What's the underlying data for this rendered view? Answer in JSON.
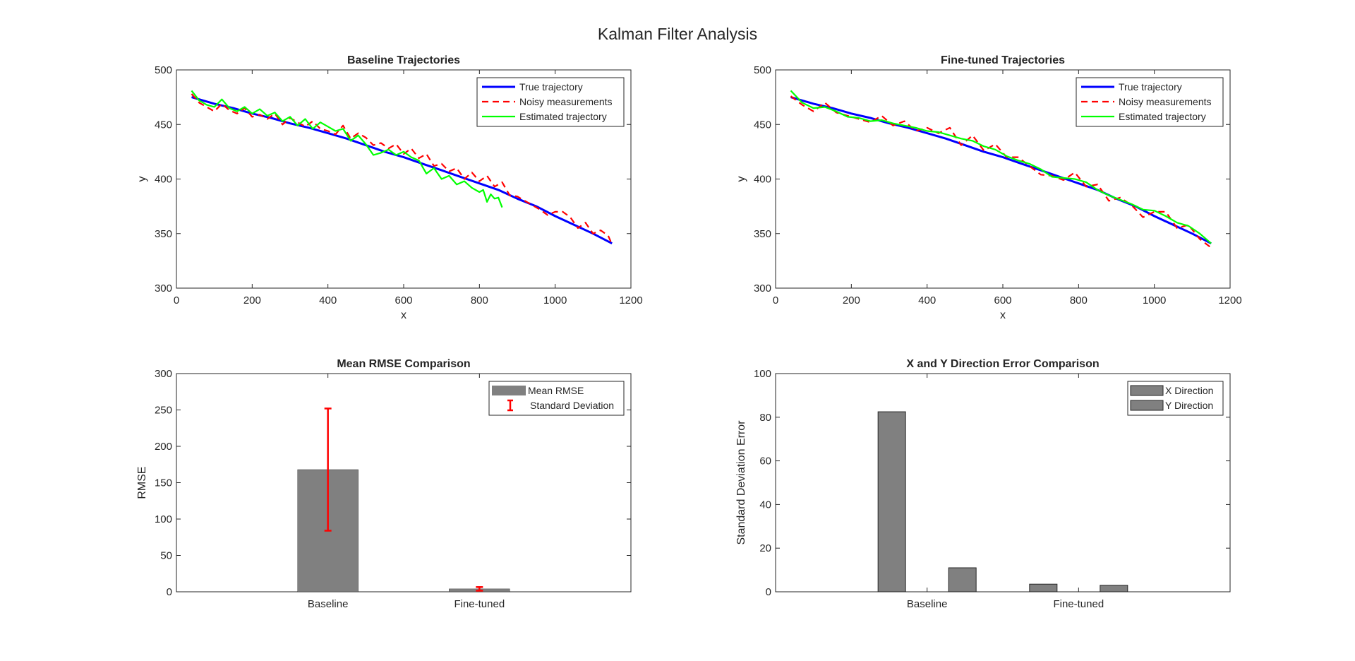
{
  "figure": {
    "title": "Kalman Filter Analysis"
  },
  "chart_data": [
    {
      "id": "baseline",
      "type": "line",
      "title": "Baseline Trajectories",
      "xlabel": "x",
      "ylabel": "y",
      "xlim": [
        0,
        1200
      ],
      "ylim": [
        300,
        500
      ],
      "xticks": [
        "0",
        "200",
        "400",
        "600",
        "800",
        "1000",
        "1200"
      ],
      "yticks": [
        "300",
        "350",
        "400",
        "450",
        "500"
      ],
      "legend_position": "top-right",
      "series": [
        {
          "name": "True trajectory",
          "color": "#0000ff",
          "style": "solid",
          "x": [
            40,
            100,
            150,
            200,
            250,
            300,
            350,
            400,
            450,
            500,
            550,
            600,
            650,
            700,
            750,
            800,
            850,
            900,
            950,
            1000,
            1050,
            1100,
            1150
          ],
          "y": [
            475,
            469,
            465,
            460,
            456,
            451,
            447,
            442,
            437,
            431,
            425,
            420,
            414,
            408,
            402,
            396,
            390,
            382,
            375,
            366,
            358,
            350,
            341
          ]
        },
        {
          "name": "Noisy measurements",
          "color": "#ff0000",
          "style": "dashed",
          "x": [
            40,
            60,
            80,
            100,
            120,
            140,
            160,
            180,
            200,
            220,
            240,
            260,
            280,
            300,
            320,
            340,
            360,
            380,
            400,
            420,
            440,
            460,
            480,
            500,
            520,
            540,
            560,
            580,
            600,
            620,
            640,
            660,
            680,
            700,
            720,
            740,
            760,
            780,
            800,
            820,
            840,
            860,
            880,
            900,
            920,
            940,
            960,
            980,
            1000,
            1020,
            1040,
            1060,
            1080,
            1100,
            1120,
            1140,
            1150
          ],
          "y": [
            478,
            470,
            466,
            462,
            469,
            463,
            460,
            465,
            457,
            459,
            455,
            460,
            450,
            456,
            452,
            448,
            453,
            446,
            444,
            441,
            449,
            437,
            442,
            438,
            431,
            433,
            428,
            432,
            423,
            428,
            419,
            423,
            412,
            414,
            407,
            410,
            400,
            406,
            398,
            403,
            393,
            397,
            385,
            384,
            380,
            376,
            372,
            367,
            370,
            370,
            365,
            355,
            360,
            350,
            353,
            348,
            340
          ]
        },
        {
          "name": "Estimated trajectory",
          "color": "#00ff00",
          "style": "solid",
          "x": [
            40,
            60,
            80,
            100,
            120,
            140,
            160,
            180,
            200,
            220,
            240,
            260,
            280,
            300,
            320,
            340,
            360,
            380,
            400,
            420,
            440,
            460,
            480,
            500,
            520,
            540,
            560,
            580,
            600,
            620,
            640,
            660,
            680,
            700,
            720,
            740,
            760,
            780,
            800,
            810,
            820,
            830,
            840,
            850,
            860
          ],
          "y": [
            481,
            472,
            468,
            466,
            473,
            465,
            462,
            466,
            460,
            464,
            458,
            461,
            453,
            457,
            449,
            455,
            446,
            452,
            448,
            444,
            446,
            435,
            440,
            432,
            422,
            424,
            427,
            422,
            425,
            420,
            417,
            405,
            410,
            400,
            403,
            395,
            398,
            392,
            388,
            390,
            379,
            386,
            382,
            383,
            374
          ]
        }
      ]
    },
    {
      "id": "finetuned",
      "type": "line",
      "title": "Fine-tuned Trajectories",
      "xlabel": "x",
      "ylabel": "y",
      "xlim": [
        0,
        1200
      ],
      "ylim": [
        300,
        500
      ],
      "xticks": [
        "0",
        "200",
        "400",
        "600",
        "800",
        "1000",
        "1200"
      ],
      "yticks": [
        "300",
        "350",
        "400",
        "450",
        "500"
      ],
      "legend_position": "top-right",
      "series": [
        {
          "name": "True trajectory",
          "color": "#0000ff",
          "style": "solid",
          "x": [
            40,
            100,
            150,
            200,
            250,
            300,
            350,
            400,
            450,
            500,
            550,
            600,
            650,
            700,
            750,
            800,
            850,
            900,
            950,
            1000,
            1050,
            1100,
            1150
          ],
          "y": [
            475,
            469,
            465,
            460,
            456,
            451,
            447,
            442,
            437,
            431,
            425,
            420,
            414,
            408,
            402,
            396,
            390,
            382,
            375,
            366,
            358,
            350,
            341
          ]
        },
        {
          "name": "Noisy measurements",
          "color": "#ff0000",
          "style": "dashed",
          "x": [
            40,
            70,
            100,
            130,
            160,
            190,
            220,
            250,
            280,
            310,
            340,
            370,
            400,
            430,
            460,
            490,
            520,
            550,
            580,
            610,
            640,
            670,
            700,
            730,
            760,
            790,
            820,
            850,
            880,
            910,
            940,
            970,
            1000,
            1030,
            1060,
            1090,
            1120,
            1150
          ],
          "y": [
            476,
            468,
            462,
            470,
            461,
            458,
            455,
            452,
            458,
            449,
            453,
            444,
            447,
            442,
            447,
            431,
            440,
            426,
            432,
            420,
            420,
            412,
            404,
            403,
            399,
            406,
            393,
            395,
            380,
            383,
            376,
            365,
            370,
            370,
            355,
            358,
            345,
            337
          ]
        },
        {
          "name": "Estimated trajectory",
          "color": "#00ff00",
          "style": "solid",
          "x": [
            40,
            70,
            100,
            130,
            160,
            190,
            220,
            250,
            280,
            310,
            340,
            370,
            400,
            430,
            460,
            490,
            520,
            550,
            580,
            610,
            640,
            670,
            700,
            730,
            760,
            790,
            820,
            850,
            880,
            910,
            940,
            970,
            1000,
            1030,
            1060,
            1090,
            1120,
            1150
          ],
          "y": [
            481,
            470,
            465,
            466,
            462,
            457,
            456,
            453,
            454,
            451,
            449,
            447,
            444,
            443,
            440,
            437,
            435,
            430,
            427,
            421,
            417,
            414,
            409,
            402,
            401,
            400,
            397,
            390,
            385,
            381,
            377,
            372,
            371,
            366,
            360,
            357,
            350,
            341
          ]
        }
      ]
    },
    {
      "id": "rmse",
      "type": "bar",
      "title": "Mean RMSE Comparison",
      "xlabel": "",
      "ylabel": "RMSE",
      "ylim": [
        0,
        300
      ],
      "yticks": [
        "0",
        "50",
        "100",
        "150",
        "200",
        "250",
        "300"
      ],
      "categories": [
        "Baseline",
        "Fine-tuned"
      ],
      "legend_position": "top-right",
      "series": [
        {
          "name": "Mean RMSE",
          "color": "#808080",
          "values": [
            168,
            4
          ]
        },
        {
          "name": "Standard Deviation",
          "color": "#ff0000",
          "values": [
            84,
            2.5
          ],
          "kind": "errorbar"
        }
      ]
    },
    {
      "id": "xydir",
      "type": "bar",
      "title": "X and Y Direction Error Comparison",
      "xlabel": "",
      "ylabel": "Standard Deviation Error",
      "ylim": [
        0,
        100
      ],
      "yticks": [
        "0",
        "20",
        "40",
        "60",
        "80",
        "100"
      ],
      "categories": [
        "Baseline",
        "Fine-tuned"
      ],
      "legend_position": "top-right",
      "series": [
        {
          "name": "X Direction",
          "color": "#808080",
          "values": [
            82.5,
            3.5
          ]
        },
        {
          "name": "Y Direction",
          "color": "#808080",
          "values": [
            11,
            3
          ]
        }
      ]
    }
  ]
}
